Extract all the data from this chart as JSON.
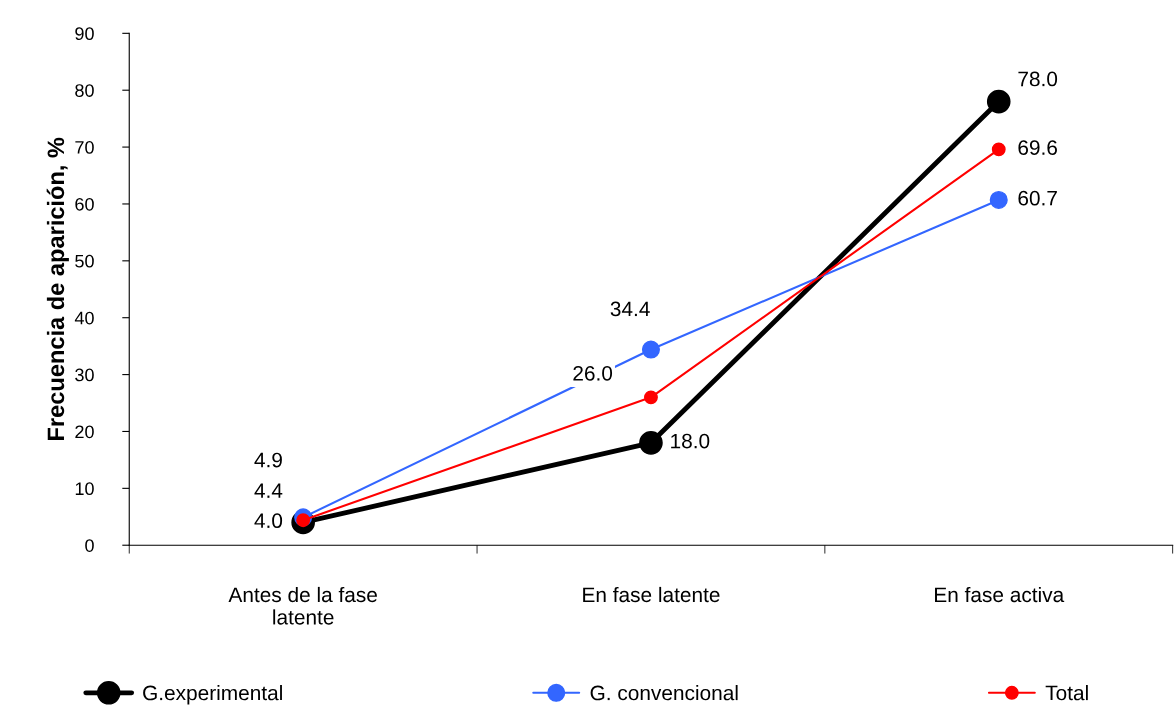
{
  "chart_data": {
    "type": "line",
    "ylabel": "Frecuencia de aparición, %",
    "categories": [
      "Antes de la fase\nlatente",
      "En fase latente",
      "En fase activa"
    ],
    "series": [
      {
        "name": "G.experimental",
        "color": "#000000",
        "values": [
          4.0,
          18.0,
          78.0
        ],
        "value_labels": [
          "4.0",
          "18.0",
          "78.0"
        ]
      },
      {
        "name": "G. convencional",
        "color": "#3366ff",
        "values": [
          4.9,
          34.4,
          60.7
        ],
        "value_labels": [
          "4.9",
          "34.4",
          "60.7"
        ]
      },
      {
        "name": "Total",
        "color": "#ff0000",
        "values": [
          4.4,
          26.0,
          69.6
        ],
        "value_labels": [
          "4.4",
          "26.0",
          "69.6"
        ]
      }
    ],
    "ylim": [
      0,
      90
    ],
    "yticks": [
      0,
      10,
      20,
      30,
      40,
      50,
      60,
      70,
      80,
      90
    ],
    "grid": false,
    "legend": "bottom",
    "marker": "circle",
    "line_style": "solid"
  }
}
